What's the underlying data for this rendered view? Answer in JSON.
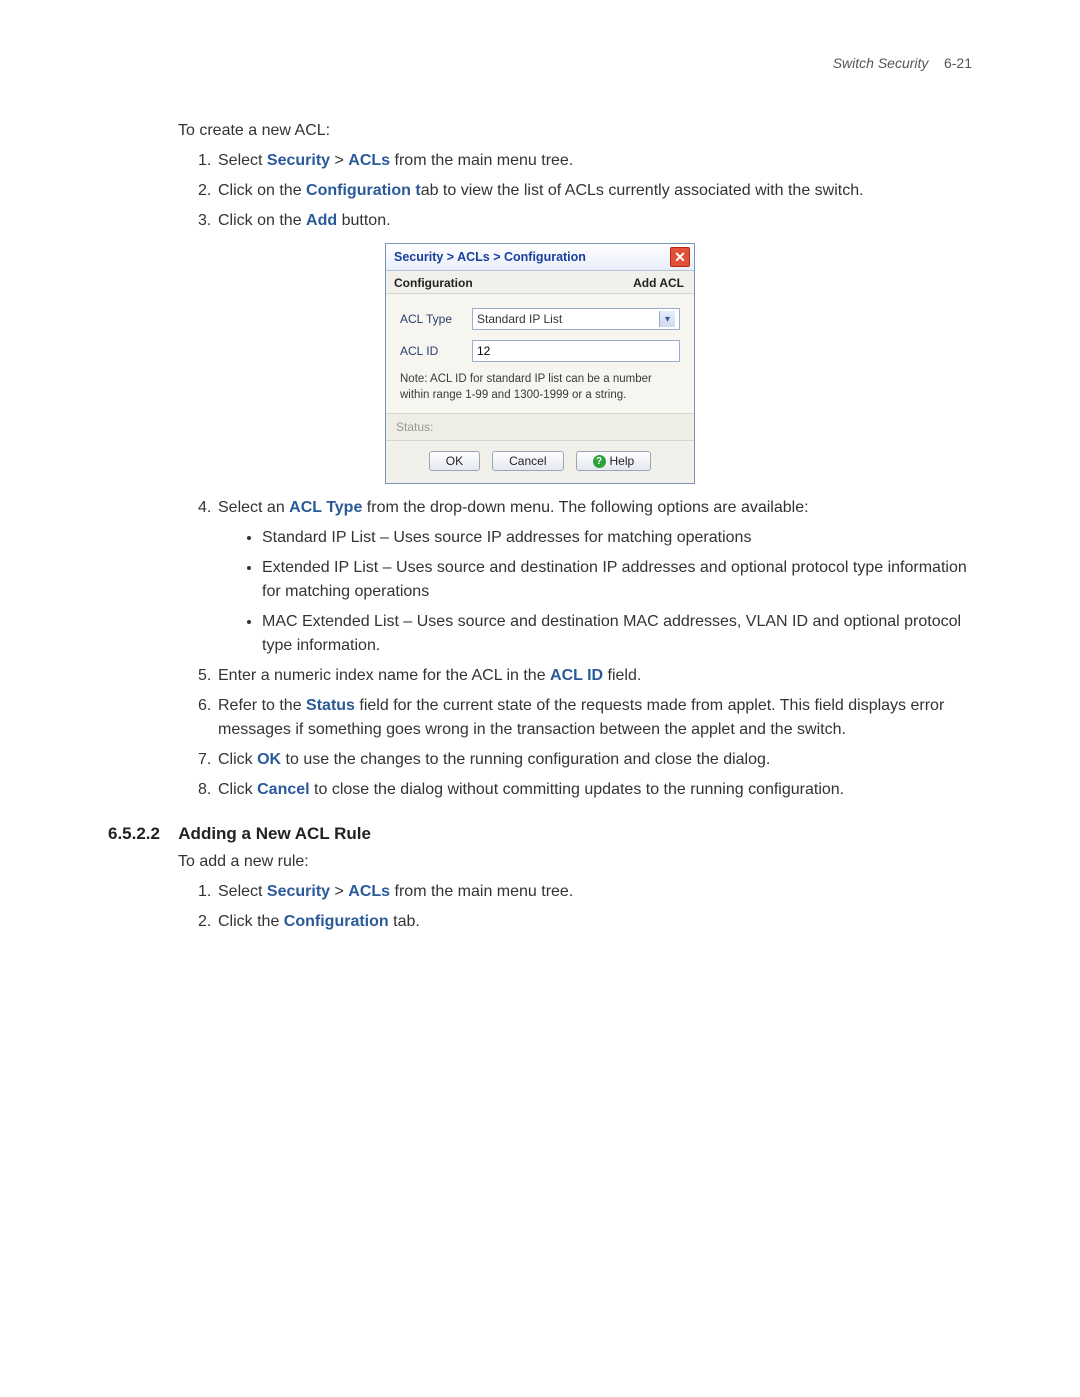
{
  "header": {
    "title": "Switch Security",
    "pagenum": "6-21"
  },
  "intro1": "To create a new ACL:",
  "steps1": [
    {
      "n": "1.",
      "pre": "Select ",
      "b1": "Security",
      "mid": " > ",
      "b2": "ACLs",
      "post": " from the main menu tree."
    },
    {
      "n": "2.",
      "pre": "Click on the ",
      "b1": "Configuration t",
      "post": "ab to view the list of ACLs currently associated with the switch."
    },
    {
      "n": "3.",
      "pre": "Click on the ",
      "b1": "Add",
      "post": " button."
    }
  ],
  "dialog": {
    "breadcrumb": "Security > ACLs > Configuration",
    "subhead_left": "Configuration",
    "subhead_right": "Add ACL",
    "acl_type_label": "ACL Type",
    "acl_type_value": "Standard IP List",
    "acl_id_label": "ACL ID",
    "acl_id_value": "12",
    "note": "Note: ACL ID for standard IP list can be a number within range 1-99 and 1300-1999 or a string.",
    "status_label": "Status:",
    "buttons": {
      "ok": "OK",
      "cancel": "Cancel",
      "help": "Help"
    },
    "colors": {
      "title_color": "#1a3f9a",
      "close_bg": "#e05038",
      "border": "#7a93b6",
      "panel_bg": "#f1f0ea",
      "help_icon_bg": "#2aa23a"
    }
  },
  "steps1b": {
    "4": {
      "n": "4.",
      "pre": "Select an ",
      "b1": "ACL Type",
      "post": " from the drop-down menu. The following options are available:"
    },
    "5": {
      "n": "5.",
      "pre": "Enter a numeric index name for the ACL in the ",
      "b1": "ACL ID",
      "post": " field."
    },
    "6": {
      "n": "6.",
      "pre": "Refer to the ",
      "b1": "Status",
      "post": " field for the current state of the requests made from applet. This field displays error messages if something goes wrong in the transaction between the applet and the switch."
    },
    "7": {
      "n": "7.",
      "pre": "Click ",
      "b1": "OK",
      "post": " to use the changes to the running configuration and close the dialog."
    },
    "8": {
      "n": "8.",
      "pre": "Click ",
      "b1": "Cancel",
      "post": " to close the dialog without committing updates to the running configuration."
    }
  },
  "sublist": [
    "Standard IP List – Uses source IP addresses for matching operations",
    "Extended IP List – Uses source and destination IP addresses and optional protocol type information for matching operations",
    "MAC Extended List – Uses source and destination MAC addresses, VLAN ID and optional protocol type information."
  ],
  "section2": {
    "num": "6.5.2.2",
    "title": "Adding a New ACL Rule",
    "intro": "To add a new rule:",
    "steps": [
      {
        "n": "1.",
        "pre": "Select ",
        "b1": "Security",
        "mid": " > ",
        "b2": "ACLs",
        "post": " from the main menu tree."
      },
      {
        "n": "2.",
        "pre": "Click the ",
        "b1": "Configuration",
        "post": " tab."
      }
    ]
  }
}
